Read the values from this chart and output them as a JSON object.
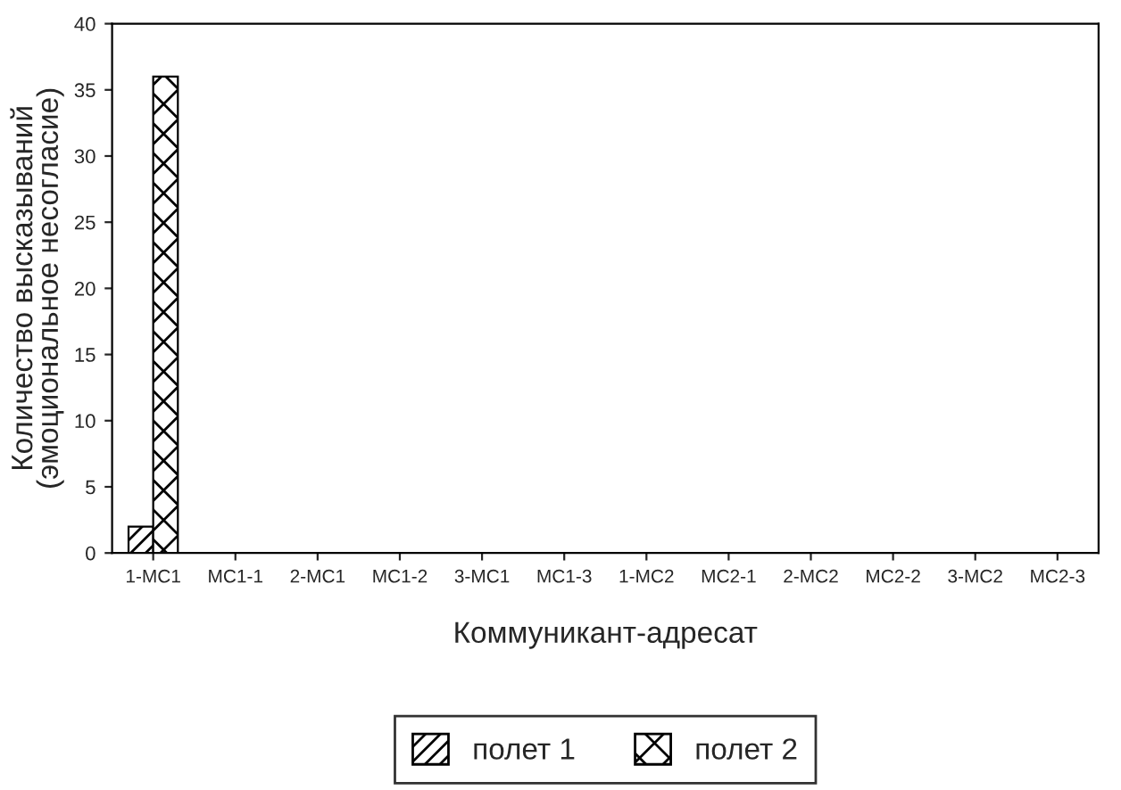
{
  "chart_data": {
    "type": "bar",
    "xlabel": "Коммуникант-адресат",
    "ylabel": "Количество высказываний\n(эмоциональное несогласие)",
    "categories": [
      "1-МС1",
      "МС1-1",
      "2-МС1",
      "МС1-2",
      "3-МС1",
      "МС1-3",
      "1-МС2",
      "МС2-1",
      "2-МС2",
      "МС2-2",
      "3-МС2",
      "МС2-3"
    ],
    "series": [
      {
        "name": "полет 1",
        "color": "#000000",
        "values": [
          2,
          0,
          0,
          0,
          0,
          0,
          0,
          0,
          0,
          0,
          0,
          0
        ]
      },
      {
        "name": "полет 2",
        "color": "#000000",
        "values": [
          36,
          0,
          0,
          0,
          0,
          0,
          0,
          0,
          0,
          0,
          0,
          0
        ]
      }
    ],
    "ylim": [
      0,
      40
    ],
    "yticks": [
      0,
      5,
      10,
      15,
      20,
      25,
      30,
      35,
      40
    ],
    "grid": false,
    "legend": "bottom"
  }
}
